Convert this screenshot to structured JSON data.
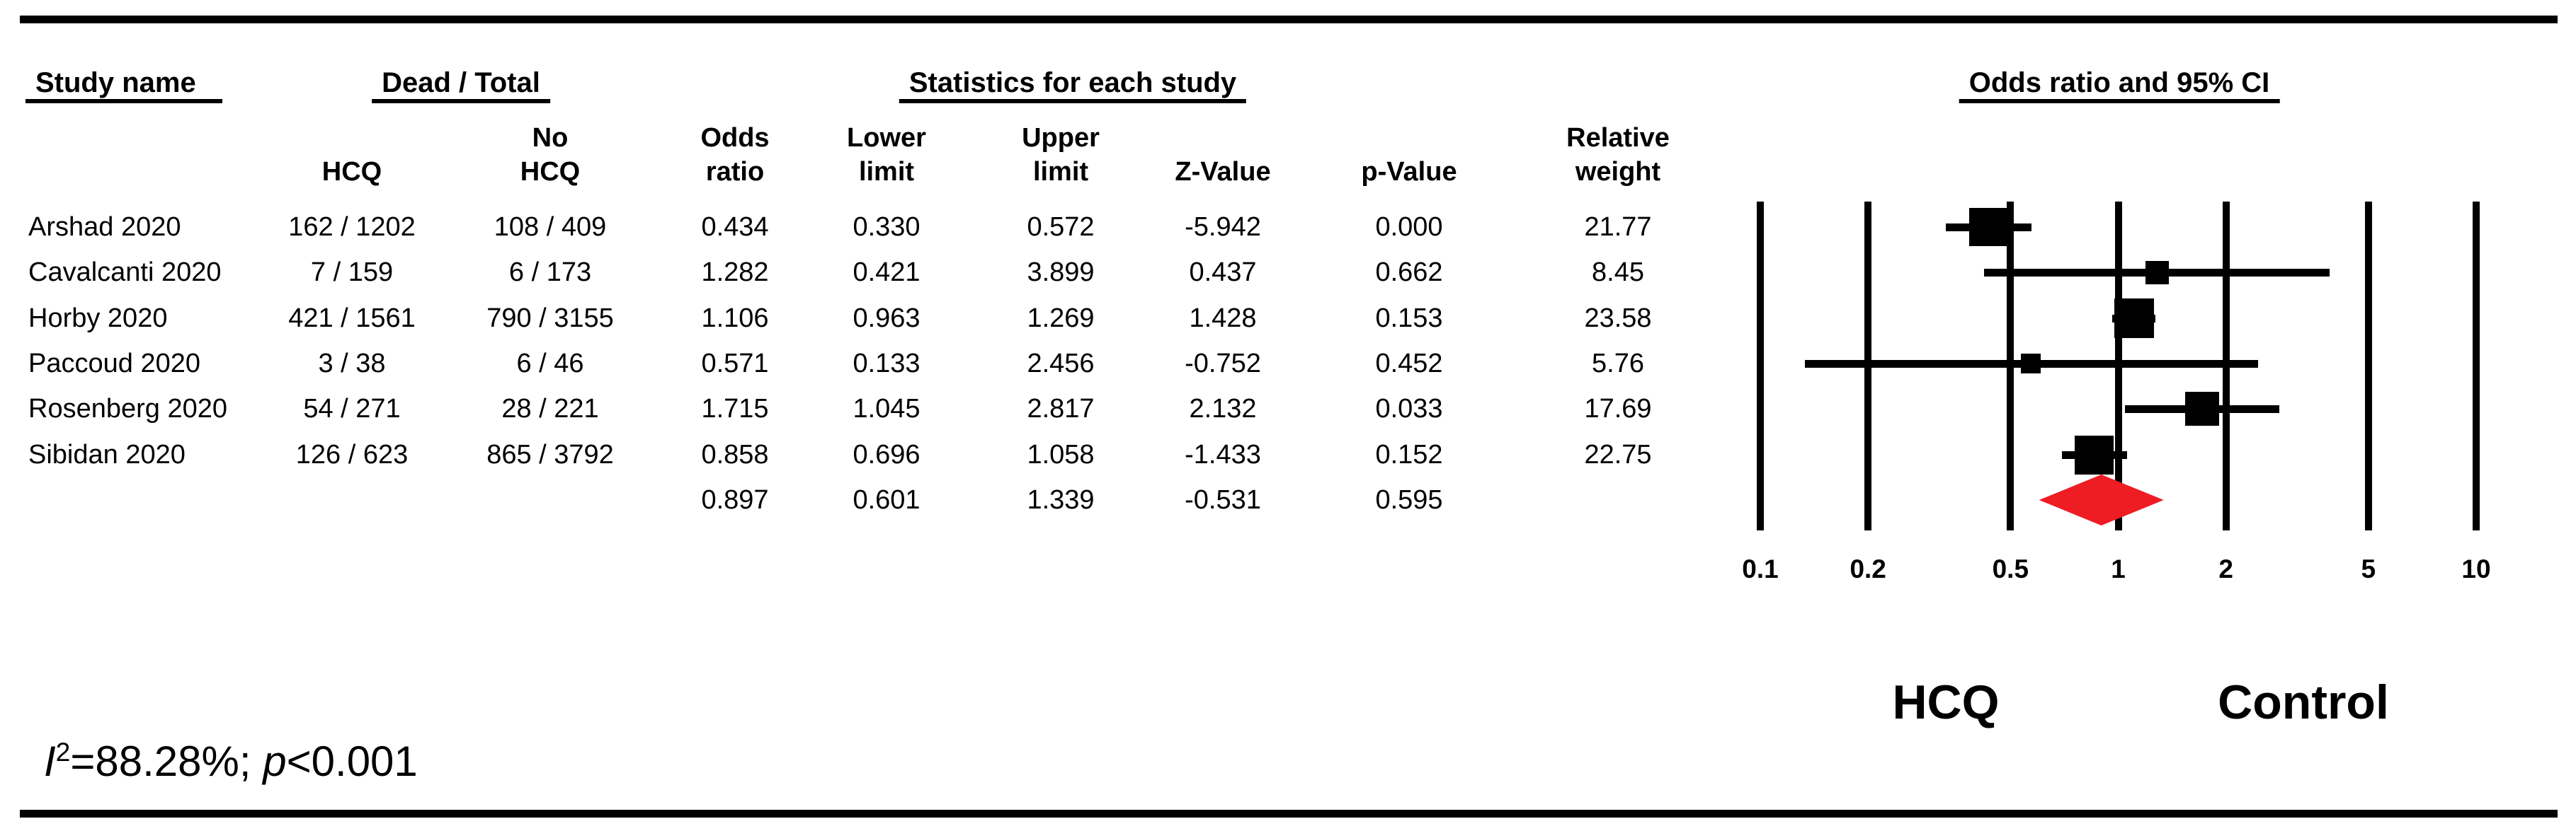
{
  "table": {
    "groups": {
      "study": "Study name",
      "dead_total": "Dead / Total",
      "statistics": "Statistics for each study",
      "plot": "Odds ratio and 95% CI"
    },
    "headers": {
      "hcq": [
        "HCQ"
      ],
      "no_hcq": [
        "No",
        "HCQ"
      ],
      "or": [
        "Odds",
        "ratio"
      ],
      "lower": [
        "Lower",
        "limit"
      ],
      "upper": [
        "Upper",
        "limit"
      ],
      "z": [
        "Z-Value"
      ],
      "p": [
        "p-Value"
      ],
      "weight": [
        "Relative",
        "weight"
      ]
    },
    "rows": [
      {
        "name": "Arshad 2020",
        "hcq": "162 / 1202",
        "no_hcq": "108 / 409",
        "or": "0.434",
        "lower": "0.330",
        "upper": "0.572",
        "z": "-5.942",
        "p": "0.000",
        "weight": "21.77"
      },
      {
        "name": "Cavalcanti 2020",
        "hcq": "7 / 159",
        "no_hcq": "6 / 173",
        "or": "1.282",
        "lower": "0.421",
        "upper": "3.899",
        "z": "0.437",
        "p": "0.662",
        "weight": "8.45"
      },
      {
        "name": "Horby 2020",
        "hcq": "421 / 1561",
        "no_hcq": "790 / 3155",
        "or": "1.106",
        "lower": "0.963",
        "upper": "1.269",
        "z": "1.428",
        "p": "0.153",
        "weight": "23.58"
      },
      {
        "name": "Paccoud 2020",
        "hcq": "3 / 38",
        "no_hcq": "6 / 46",
        "or": "0.571",
        "lower": "0.133",
        "upper": "2.456",
        "z": "-0.752",
        "p": "0.452",
        "weight": "5.76"
      },
      {
        "name": "Rosenberg 2020",
        "hcq": "54 / 271",
        "no_hcq": "28 / 221",
        "or": "1.715",
        "lower": "1.045",
        "upper": "2.817",
        "z": "2.132",
        "p": "0.033",
        "weight": "17.69"
      },
      {
        "name": "Sibidan 2020",
        "hcq": "126 / 623",
        "no_hcq": "865 / 3792",
        "or": "0.858",
        "lower": "0.696",
        "upper": "1.058",
        "z": "-1.433",
        "p": "0.152",
        "weight": "22.75"
      }
    ],
    "summary_row": {
      "or": "0.897",
      "lower": "0.601",
      "upper": "1.339",
      "z": "-0.531",
      "p": "0.595"
    }
  },
  "chart_data": {
    "type": "forest",
    "title": "Odds ratio and 95% CI",
    "x_scale": "log10",
    "x_range": [
      0.1,
      10
    ],
    "x_ticks": [
      0.1,
      0.2,
      0.5,
      1,
      2,
      5,
      10
    ],
    "x_tick_labels": [
      "0.1",
      "0.2",
      "0.5",
      "1",
      "2",
      "5",
      "10"
    ],
    "studies": [
      {
        "name": "Arshad 2020",
        "dead_total_hcq": "162 / 1202",
        "dead_total_no_hcq": "108 / 409",
        "or": 0.434,
        "lower": 0.33,
        "upper": 0.572,
        "z": -5.942,
        "p": 0.0,
        "weight": 21.77
      },
      {
        "name": "Cavalcanti 2020",
        "dead_total_hcq": "7 / 159",
        "dead_total_no_hcq": "6 / 173",
        "or": 1.282,
        "lower": 0.421,
        "upper": 3.899,
        "z": 0.437,
        "p": 0.662,
        "weight": 8.45
      },
      {
        "name": "Horby 2020",
        "dead_total_hcq": "421 / 1561",
        "dead_total_no_hcq": "790 / 3155",
        "or": 1.106,
        "lower": 0.963,
        "upper": 1.269,
        "z": 1.428,
        "p": 0.153,
        "weight": 23.58
      },
      {
        "name": "Paccoud 2020",
        "dead_total_hcq": "3 / 38",
        "dead_total_no_hcq": "6 / 46",
        "or": 0.571,
        "lower": 0.133,
        "upper": 2.456,
        "z": -0.752,
        "p": 0.452,
        "weight": 5.76
      },
      {
        "name": "Rosenberg 2020",
        "dead_total_hcq": "54 / 271",
        "dead_total_no_hcq": "28 / 221",
        "or": 1.715,
        "lower": 1.045,
        "upper": 2.817,
        "z": 2.132,
        "p": 0.033,
        "weight": 17.69
      },
      {
        "name": "Sibidan 2020",
        "dead_total_hcq": "126 / 623",
        "dead_total_no_hcq": "865 / 3792",
        "or": 0.858,
        "lower": 0.696,
        "upper": 1.058,
        "z": -1.433,
        "p": 0.152,
        "weight": 22.75
      }
    ],
    "summary": {
      "or": 0.897,
      "lower": 0.601,
      "upper": 1.339,
      "z": -0.531,
      "p": 0.595
    },
    "group_labels": [
      "HCQ",
      "Control"
    ],
    "heterogeneity": "I2=88.28%; p<0.001",
    "legend_position": "none",
    "grid": "vertical-reference-lines"
  },
  "plot_labels": {
    "left_group": "HCQ",
    "right_group": "Control"
  },
  "footer": {
    "i": "I",
    "i_sup": "2",
    "eq": "=88.28%; ",
    "p": "p",
    "p_rest": "<0.001"
  },
  "colors": {
    "diamond_red": "#ee1c23",
    "ink": "#000000"
  }
}
